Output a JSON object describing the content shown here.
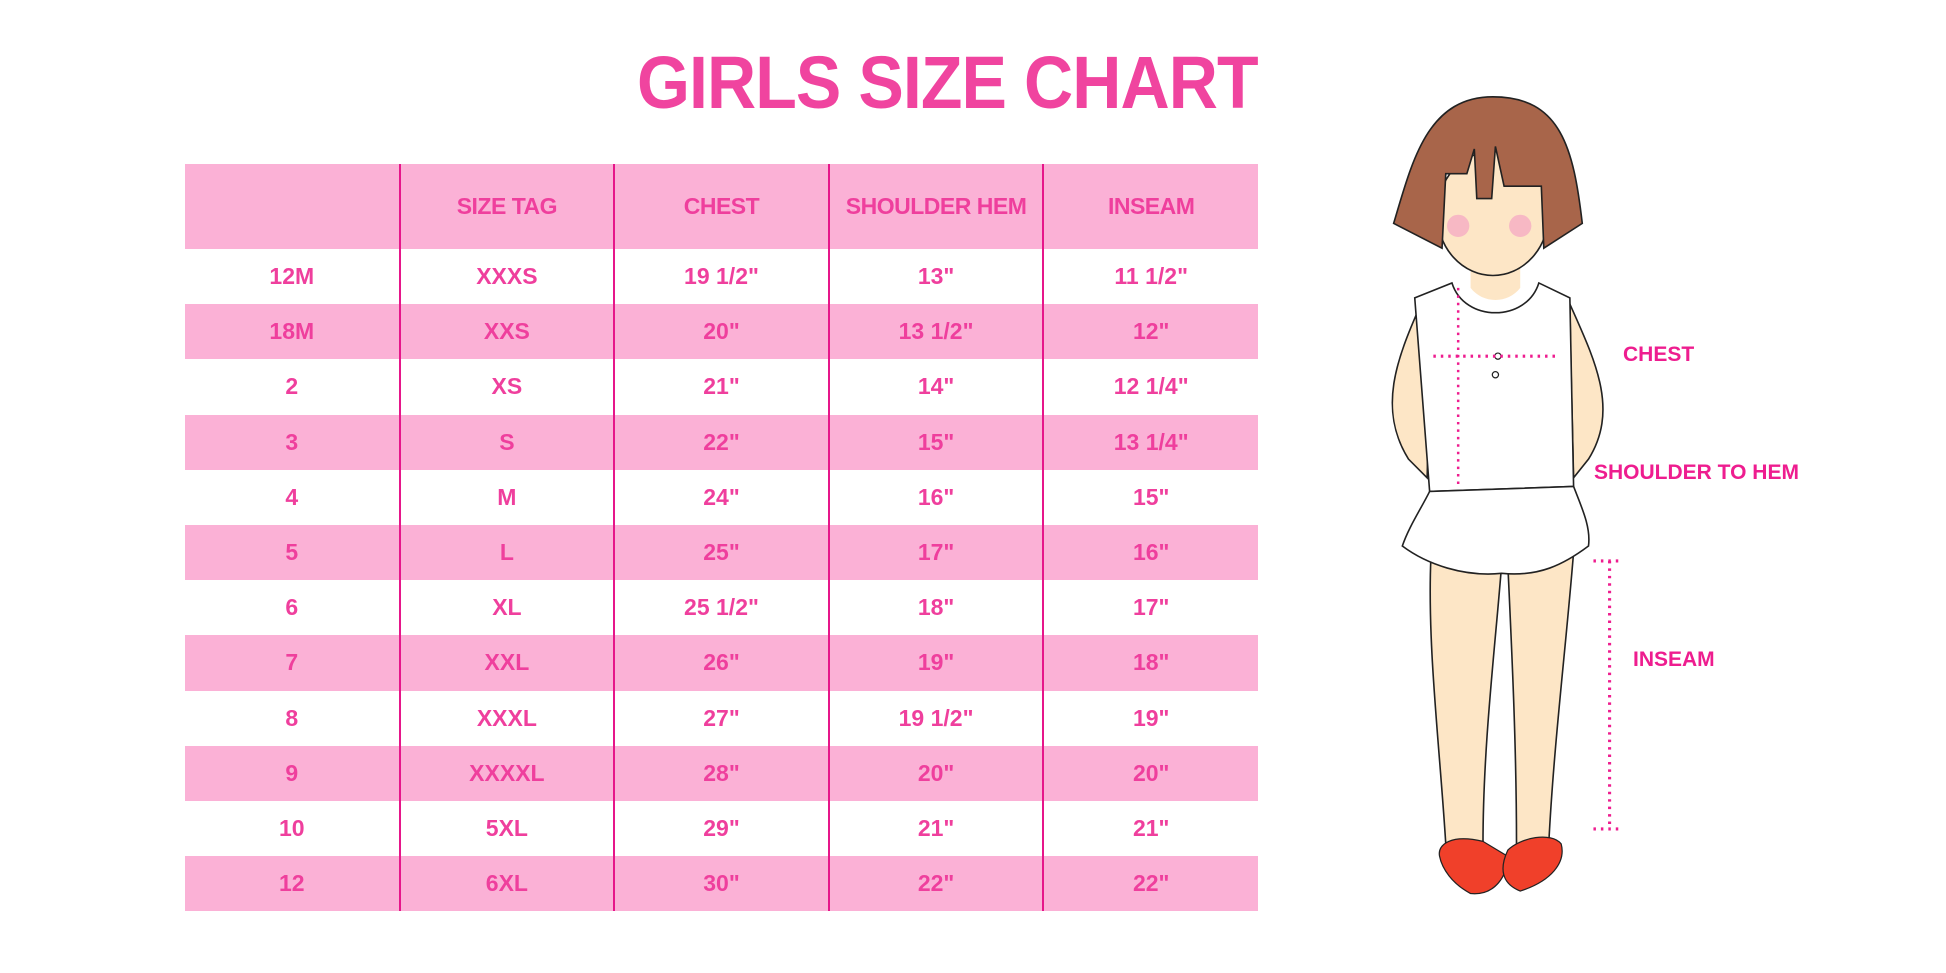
{
  "title": "GIRLS SIZE CHART",
  "table": {
    "headers": [
      "",
      "SIZE TAG",
      "CHEST",
      "SHOULDER HEM",
      "INSEAM"
    ],
    "rows": [
      [
        "12M",
        "XXXS",
        "19 1/2\"",
        "13\"",
        "11 1/2\""
      ],
      [
        "18M",
        "XXS",
        "20\"",
        "13 1/2\"",
        "12\""
      ],
      [
        "2",
        "XS",
        "21\"",
        "14\"",
        "12 1/4\""
      ],
      [
        "3",
        "S",
        "22\"",
        "15\"",
        "13 1/4\""
      ],
      [
        "4",
        "M",
        "24\"",
        "16\"",
        "15\""
      ],
      [
        "5",
        "L",
        "25\"",
        "17\"",
        "16\""
      ],
      [
        "6",
        "XL",
        "25 1/2\"",
        "18\"",
        "17\""
      ],
      [
        "7",
        "XXL",
        "26\"",
        "19\"",
        "18\""
      ],
      [
        "8",
        "XXXL",
        "27\"",
        "19 1/2\"",
        "19\""
      ],
      [
        "9",
        "XXXXL",
        "28\"",
        "20\"",
        "20\""
      ],
      [
        "10",
        "5XL",
        "29\"",
        "21\"",
        "21\""
      ],
      [
        "12",
        "6XL",
        "30\"",
        "22\"",
        "22\""
      ]
    ]
  },
  "figure": {
    "labels": {
      "chest": "CHEST",
      "shoulder_to_hem": "SHOULDER TO HEM",
      "inseam": "INSEAM"
    }
  },
  "colors": {
    "accent": "#ef3f9d",
    "row_pink": "#fbb1d6",
    "divider": "#e6168a"
  }
}
